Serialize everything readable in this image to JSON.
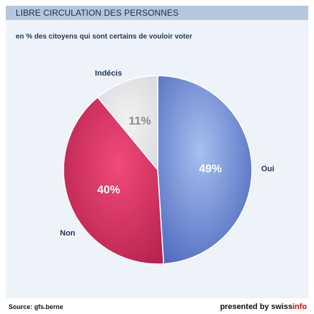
{
  "title": "LIBRE CIRCULATION DES PERSONNES",
  "subtitle": "en % des citoyens qui sont certains de vouloir voter",
  "chart_data": {
    "type": "pie",
    "title": "LIBRE CIRCULATION DES PERSONNES",
    "subtitle": "en % des citoyens qui sont certains de vouloir voter",
    "unit": "%",
    "slices": [
      {
        "label": "Oui",
        "value": 49,
        "text": "49%",
        "color": "#5b7bd0",
        "text_color": "#ffffff"
      },
      {
        "label": "Non",
        "value": 40,
        "text": "40%",
        "color": "#cc3060",
        "text_color": "#ffffff"
      },
      {
        "label": "Indécis",
        "value": 11,
        "text": "11%",
        "color": "#e8e8ea",
        "text_color": "#8a8a8a"
      }
    ]
  },
  "footer": {
    "source": "Source: gfs.berne",
    "credit_prefix": "presented by swiss",
    "credit_brand": "info"
  },
  "colors": {
    "title_bar": "#b4c7dd",
    "background": "#eef3f9",
    "brand": "#cc0000"
  }
}
